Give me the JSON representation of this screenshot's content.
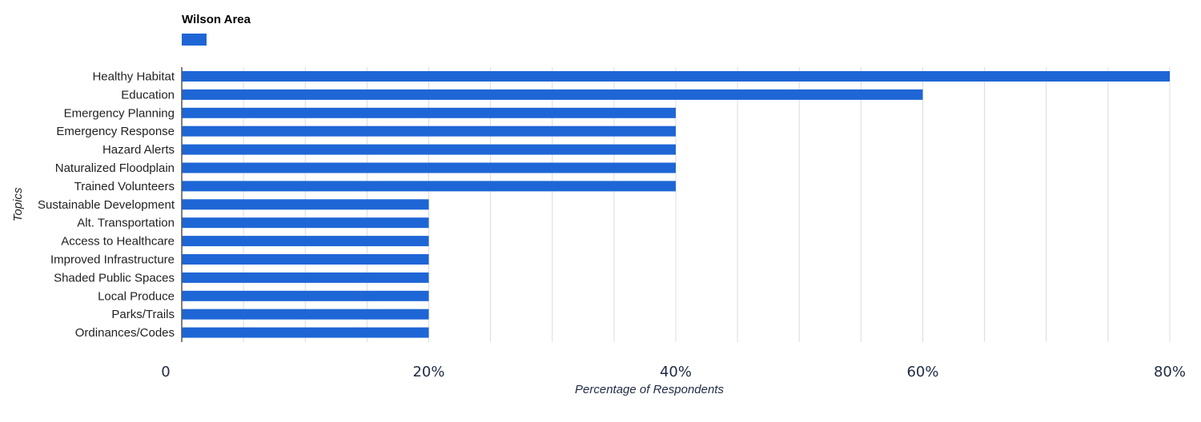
{
  "chart_data": {
    "type": "bar",
    "orientation": "horizontal",
    "legend_title": "Wilson Area",
    "legend_placement": "top-left",
    "bar_color": "#1e66d6",
    "categories": [
      "Healthy Habitat",
      "Education",
      "Emergency Planning",
      "Emergency Response",
      "Hazard Alerts",
      "Naturalized Floodplain",
      "Trained Volunteers",
      "Sustainable Development",
      "Alt. Transportation",
      "Access to Healthcare",
      "Improved Infrastructure",
      "Shaded Public Spaces",
      "Local Produce",
      "Parks/Trails",
      "Ordinances/Codes"
    ],
    "values": [
      80,
      60,
      40,
      40,
      40,
      40,
      40,
      20,
      20,
      20,
      20,
      20,
      20,
      20,
      20
    ],
    "xlim": [
      0,
      80
    ],
    "xticks": [
      {
        "value": 0,
        "label": "0"
      },
      {
        "value": 20,
        "label": "20%"
      },
      {
        "value": 40,
        "label": "40%"
      },
      {
        "value": 60,
        "label": "60%"
      },
      {
        "value": 80,
        "label": "80%"
      }
    ],
    "minor_grid_step": 5,
    "grid": true,
    "xlabel": "Percentage of Respondents",
    "ylabel": "Topics"
  }
}
